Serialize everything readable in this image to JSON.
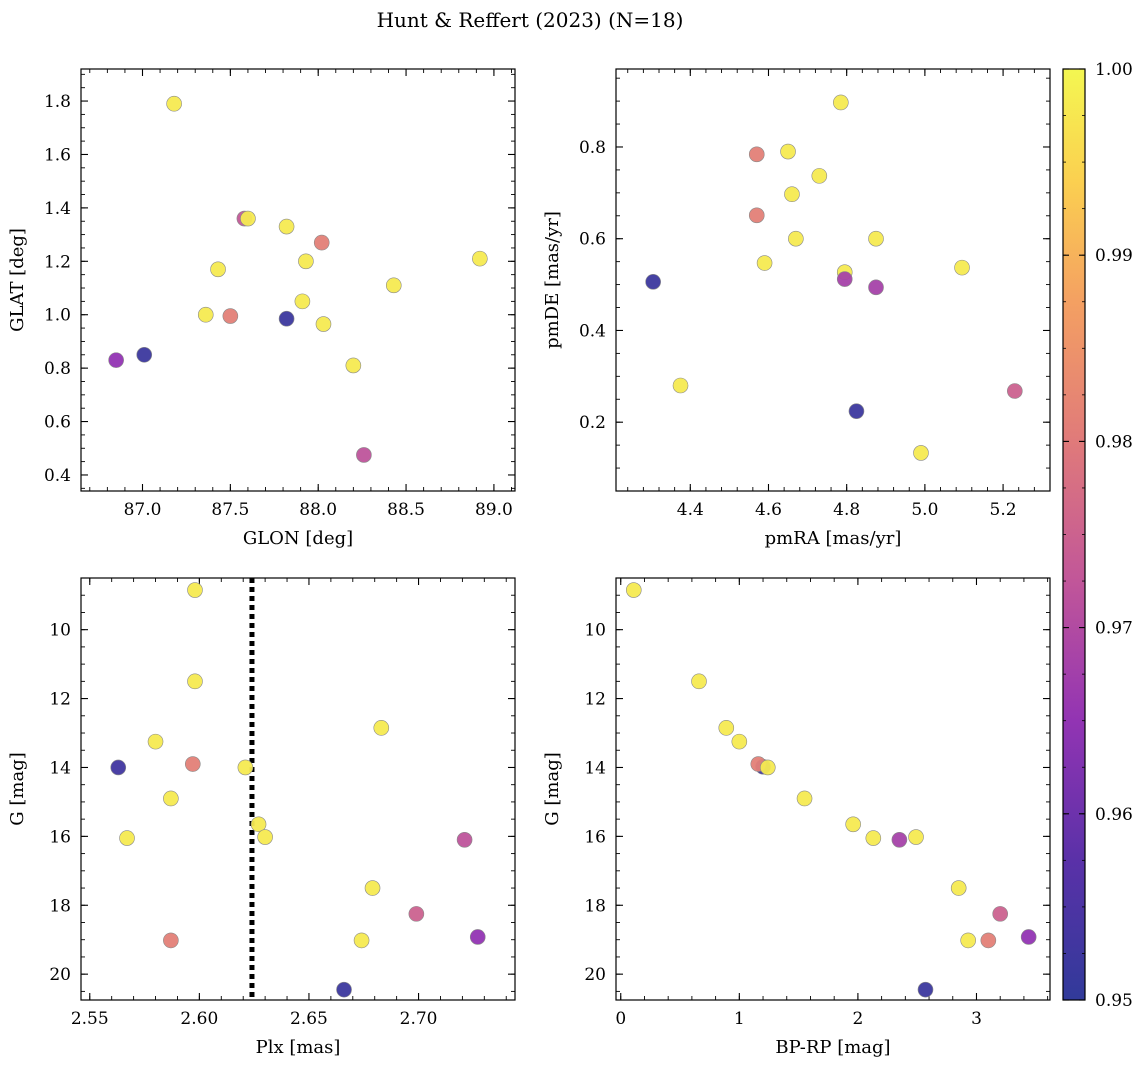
{
  "chart_data": {
    "type": "scatter",
    "title": "Hunt & Reffert (2023) (N=18)",
    "colorbar": {
      "colormap": "plasma",
      "range": [
        0.95,
        1.0
      ],
      "ticks": [
        0.95,
        0.96,
        0.97,
        0.98,
        0.99,
        1.0
      ],
      "tick_labels": [
        "0.95",
        "0.96",
        "0.97",
        "0.98",
        "0.99",
        "1.00"
      ]
    },
    "panels": [
      {
        "id": "glon-glat",
        "xlabel": "GLON [deg]",
        "ylabel": "GLAT [deg]",
        "xlim": [
          86.65,
          89.12
        ],
        "ylim": [
          0.34,
          1.92
        ],
        "y_inverted": false,
        "xticks": [
          87.0,
          87.5,
          88.0,
          88.5,
          89.0
        ],
        "xtick_labels": [
          "87.0",
          "87.5",
          "88.0",
          "88.5",
          "89.0"
        ],
        "yticks": [
          0.4,
          0.6,
          0.8,
          1.0,
          1.2,
          1.4,
          1.6,
          1.8
        ],
        "ytick_labels": [
          "0.4",
          "0.6",
          "0.8",
          "1.0",
          "1.2",
          "1.4",
          "1.6",
          "1.8"
        ],
        "points": [
          {
            "x": 87.18,
            "y": 1.79,
            "c": 0.998
          },
          {
            "x": 87.58,
            "y": 1.36,
            "c": 0.973
          },
          {
            "x": 87.6,
            "y": 1.36,
            "c": 0.998
          },
          {
            "x": 87.82,
            "y": 1.33,
            "c": 0.998
          },
          {
            "x": 88.02,
            "y": 1.27,
            "c": 0.981
          },
          {
            "x": 87.93,
            "y": 1.2,
            "c": 0.998
          },
          {
            "x": 88.92,
            "y": 1.21,
            "c": 0.998
          },
          {
            "x": 87.43,
            "y": 1.17,
            "c": 0.998
          },
          {
            "x": 88.43,
            "y": 1.11,
            "c": 0.998
          },
          {
            "x": 87.91,
            "y": 1.05,
            "c": 0.998
          },
          {
            "x": 87.36,
            "y": 1.0,
            "c": 0.998
          },
          {
            "x": 87.5,
            "y": 0.995,
            "c": 0.981
          },
          {
            "x": 87.82,
            "y": 0.985,
            "c": 0.952
          },
          {
            "x": 88.03,
            "y": 0.965,
            "c": 0.998
          },
          {
            "x": 87.01,
            "y": 0.85,
            "c": 0.952
          },
          {
            "x": 86.85,
            "y": 0.83,
            "c": 0.965
          },
          {
            "x": 88.2,
            "y": 0.81,
            "c": 0.998
          },
          {
            "x": 88.26,
            "y": 0.475,
            "c": 0.972
          }
        ]
      },
      {
        "id": "pmra-pmde",
        "xlabel": "pmRA [mas/yr]",
        "ylabel": "pmDE [mas/yr]",
        "xlim": [
          4.21,
          5.32
        ],
        "ylim": [
          0.05,
          0.97
        ],
        "y_inverted": false,
        "xticks": [
          4.4,
          4.6,
          4.8,
          5.0,
          5.2
        ],
        "xtick_labels": [
          "4.4",
          "4.6",
          "4.8",
          "5.0",
          "5.2"
        ],
        "yticks": [
          0.2,
          0.4,
          0.6,
          0.8
        ],
        "ytick_labels": [
          "0.2",
          "0.4",
          "0.6",
          "0.8"
        ],
        "points": [
          {
            "x": 4.785,
            "y": 0.897,
            "c": 0.998
          },
          {
            "x": 4.57,
            "y": 0.784,
            "c": 0.981
          },
          {
            "x": 4.65,
            "y": 0.79,
            "c": 0.998
          },
          {
            "x": 4.73,
            "y": 0.737,
            "c": 0.998
          },
          {
            "x": 4.66,
            "y": 0.697,
            "c": 0.998
          },
          {
            "x": 4.57,
            "y": 0.651,
            "c": 0.981
          },
          {
            "x": 4.67,
            "y": 0.6,
            "c": 0.998
          },
          {
            "x": 4.875,
            "y": 0.6,
            "c": 0.998
          },
          {
            "x": 4.59,
            "y": 0.547,
            "c": 0.998
          },
          {
            "x": 5.095,
            "y": 0.537,
            "c": 0.998
          },
          {
            "x": 4.795,
            "y": 0.527,
            "c": 0.998
          },
          {
            "x": 4.795,
            "y": 0.512,
            "c": 0.968
          },
          {
            "x": 4.305,
            "y": 0.506,
            "c": 0.952
          },
          {
            "x": 4.875,
            "y": 0.494,
            "c": 0.968
          },
          {
            "x": 4.375,
            "y": 0.28,
            "c": 0.998
          },
          {
            "x": 5.23,
            "y": 0.268,
            "c": 0.975
          },
          {
            "x": 4.825,
            "y": 0.224,
            "c": 0.952
          },
          {
            "x": 4.99,
            "y": 0.133,
            "c": 0.998
          }
        ]
      },
      {
        "id": "plx-g",
        "xlabel": "Plx [mas]",
        "ylabel": "G [mag]",
        "xlim": [
          2.546,
          2.744
        ],
        "ylim": [
          8.5,
          20.75
        ],
        "y_inverted": true,
        "xticks": [
          2.55,
          2.6,
          2.65,
          2.7
        ],
        "xtick_labels": [
          "2.55",
          "2.60",
          "2.65",
          "2.70"
        ],
        "yticks": [
          10,
          12,
          14,
          16,
          18,
          20
        ],
        "ytick_labels": [
          "10",
          "12",
          "14",
          "16",
          "18",
          "20"
        ],
        "vline": {
          "x": 2.624,
          "style": "dotted"
        },
        "points": [
          {
            "x": 2.598,
            "y": 8.85,
            "c": 0.998
          },
          {
            "x": 2.598,
            "y": 11.5,
            "c": 0.998
          },
          {
            "x": 2.683,
            "y": 12.85,
            "c": 0.998
          },
          {
            "x": 2.58,
            "y": 13.25,
            "c": 0.998
          },
          {
            "x": 2.597,
            "y": 13.9,
            "c": 0.981
          },
          {
            "x": 2.563,
            "y": 14.0,
            "c": 0.953
          },
          {
            "x": 2.621,
            "y": 14.0,
            "c": 0.998
          },
          {
            "x": 2.587,
            "y": 14.9,
            "c": 0.998
          },
          {
            "x": 2.627,
            "y": 15.65,
            "c": 0.998
          },
          {
            "x": 2.567,
            "y": 16.05,
            "c": 0.998
          },
          {
            "x": 2.63,
            "y": 16.02,
            "c": 0.998
          },
          {
            "x": 2.721,
            "y": 16.1,
            "c": 0.972
          },
          {
            "x": 2.679,
            "y": 17.5,
            "c": 0.998
          },
          {
            "x": 2.699,
            "y": 18.25,
            "c": 0.975
          },
          {
            "x": 2.727,
            "y": 18.92,
            "c": 0.965
          },
          {
            "x": 2.587,
            "y": 19.02,
            "c": 0.981
          },
          {
            "x": 2.674,
            "y": 19.02,
            "c": 0.998
          },
          {
            "x": 2.666,
            "y": 20.45,
            "c": 0.952
          }
        ]
      },
      {
        "id": "bprp-g",
        "xlabel": "BP-RP [mag]",
        "ylabel": "G [mag]",
        "xlim": [
          -0.04,
          3.62
        ],
        "ylim": [
          8.5,
          20.75
        ],
        "y_inverted": true,
        "xticks": [
          0,
          1,
          2,
          3
        ],
        "xtick_labels": [
          "0",
          "1",
          "2",
          "3"
        ],
        "yticks": [
          10,
          12,
          14,
          16,
          18,
          20
        ],
        "ytick_labels": [
          "10",
          "12",
          "14",
          "16",
          "18",
          "20"
        ],
        "points": [
          {
            "x": 0.11,
            "y": 8.85,
            "c": 0.998
          },
          {
            "x": 0.66,
            "y": 11.5,
            "c": 0.998
          },
          {
            "x": 0.89,
            "y": 12.85,
            "c": 0.998
          },
          {
            "x": 1.0,
            "y": 13.25,
            "c": 0.998
          },
          {
            "x": 1.2,
            "y": 13.98,
            "c": 0.953
          },
          {
            "x": 1.16,
            "y": 13.9,
            "c": 0.981
          },
          {
            "x": 1.24,
            "y": 14.0,
            "c": 0.998
          },
          {
            "x": 1.55,
            "y": 14.9,
            "c": 0.998
          },
          {
            "x": 1.96,
            "y": 15.65,
            "c": 0.998
          },
          {
            "x": 2.13,
            "y": 16.05,
            "c": 0.998
          },
          {
            "x": 2.35,
            "y": 16.1,
            "c": 0.968
          },
          {
            "x": 2.49,
            "y": 16.02,
            "c": 0.998
          },
          {
            "x": 2.85,
            "y": 17.5,
            "c": 0.998
          },
          {
            "x": 3.2,
            "y": 18.25,
            "c": 0.975
          },
          {
            "x": 3.44,
            "y": 18.92,
            "c": 0.965
          },
          {
            "x": 2.93,
            "y": 19.02,
            "c": 0.998
          },
          {
            "x": 3.1,
            "y": 19.02,
            "c": 0.981
          },
          {
            "x": 2.57,
            "y": 20.45,
            "c": 0.952
          }
        ]
      }
    ]
  }
}
